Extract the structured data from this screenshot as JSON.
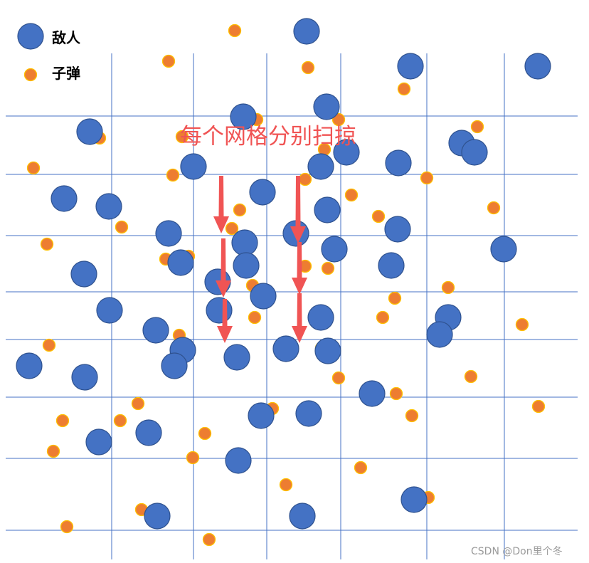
{
  "legend": {
    "enemy_label": "敌人",
    "bullet_label": "子弹"
  },
  "annotation": "每个网格分别扫掠",
  "watermark": "CSDN @Don里个冬",
  "colors": {
    "enemy_fill": "#4472c4",
    "enemy_stroke": "#2f528f",
    "bullet_fill": "#ed7d31",
    "bullet_stroke": "#ffc000",
    "grid": "#4472c4",
    "arrow": "#f05454",
    "annotation_text": "#f05454",
    "watermark_text": "#9a9a9a"
  }
}
